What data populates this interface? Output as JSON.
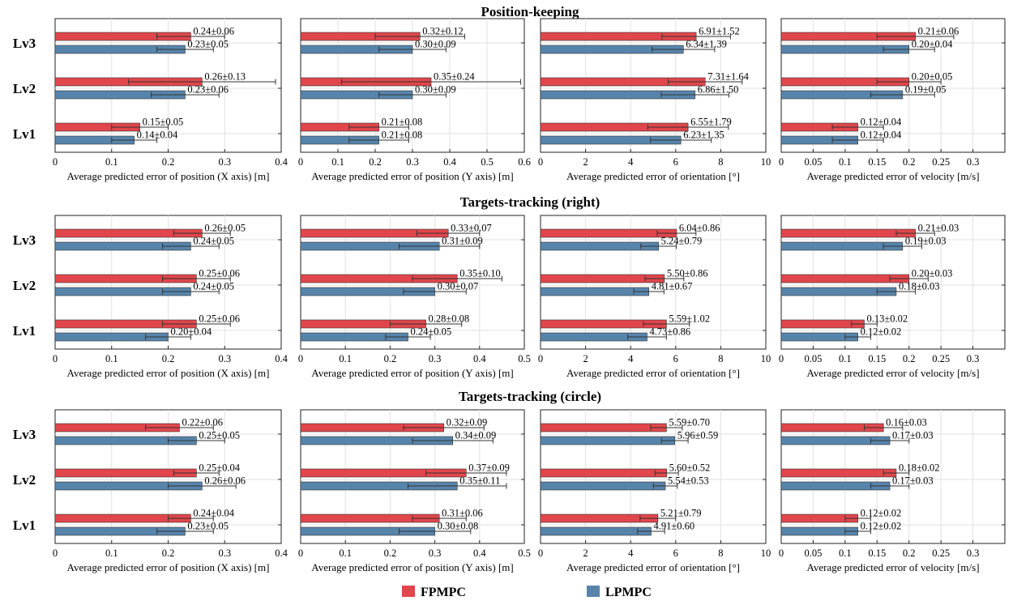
{
  "rows": [
    {
      "title": "Position-keeping"
    },
    {
      "title": "Targets-tracking (right)"
    },
    {
      "title": "Targets-tracking (circle)"
    }
  ],
  "levels": [
    "Lv3",
    "Lv2",
    "Lv1"
  ],
  "legend": {
    "placement": "bottom",
    "items": [
      {
        "name": "FPMPC",
        "color": "#e0464b"
      },
      {
        "name": "LPMPC",
        "color": "#5784ab"
      }
    ]
  },
  "colors": {
    "fpmpc": "#e0464b",
    "lpmpc": "#5784ab",
    "grid": "#e2e2e2",
    "errorbar": "#333333"
  },
  "chart_data": [
    {
      "type": "bar",
      "orientation": "horizontal",
      "row": 0,
      "col": 0,
      "xlabel": "Average predicted error of position (X axis) [m]",
      "xlim": [
        0,
        0.4
      ],
      "xticks": [
        "0",
        "0.1",
        "0.2",
        "0.3",
        "0.4"
      ],
      "grid": true,
      "categories": [
        "Lv3",
        "Lv2",
        "Lv1"
      ],
      "series": [
        {
          "name": "FPMPC",
          "values": [
            0.24,
            0.26,
            0.15
          ],
          "errors": [
            0.06,
            0.13,
            0.05
          ],
          "labels": [
            "0.24±0.06",
            "0.26±0.13",
            "0.15±0.05"
          ]
        },
        {
          "name": "LPMPC",
          "values": [
            0.23,
            0.23,
            0.14
          ],
          "errors": [
            0.05,
            0.06,
            0.04
          ],
          "labels": [
            "0.23±0.05",
            "0.23±0.06",
            "0.14±0.04"
          ]
        }
      ]
    },
    {
      "type": "bar",
      "orientation": "horizontal",
      "row": 0,
      "col": 1,
      "xlabel": "Average predicted error of position (Y axis) [m]",
      "xlim": [
        0,
        0.6
      ],
      "xticks": [
        "0",
        "0.1",
        "0.2",
        "0.3",
        "0.4",
        "0.5",
        "0.6"
      ],
      "grid": true,
      "categories": [
        "Lv3",
        "Lv2",
        "Lv1"
      ],
      "series": [
        {
          "name": "FPMPC",
          "values": [
            0.32,
            0.35,
            0.21
          ],
          "errors": [
            0.12,
            0.24,
            0.08
          ],
          "labels": [
            "0.32±0.12",
            "0.35±0.24",
            "0.21±0.08"
          ]
        },
        {
          "name": "LPMPC",
          "values": [
            0.3,
            0.3,
            0.21
          ],
          "errors": [
            0.09,
            0.09,
            0.08
          ],
          "labels": [
            "0.30±0.09",
            "0.30±0.09",
            "0.21±0.08"
          ]
        }
      ]
    },
    {
      "type": "bar",
      "orientation": "horizontal",
      "row": 0,
      "col": 2,
      "xlabel": "Average predicted error of orientation [°]",
      "xlim": [
        0,
        10
      ],
      "xticks": [
        "0",
        "2",
        "4",
        "6",
        "8",
        "10"
      ],
      "grid": true,
      "categories": [
        "Lv3",
        "Lv2",
        "Lv1"
      ],
      "series": [
        {
          "name": "FPMPC",
          "values": [
            6.91,
            7.31,
            6.55
          ],
          "errors": [
            1.52,
            1.64,
            1.79
          ],
          "labels": [
            "6.91±1.52",
            "7.31±1.64",
            "6.55±1.79"
          ]
        },
        {
          "name": "LPMPC",
          "values": [
            6.34,
            6.86,
            6.23
          ],
          "errors": [
            1.39,
            1.5,
            1.35
          ],
          "labels": [
            "6.34±1.39",
            "6.86±1.50",
            "6.23±1.35"
          ]
        }
      ]
    },
    {
      "type": "bar",
      "orientation": "horizontal",
      "row": 0,
      "col": 3,
      "xlabel": "Average predicted error of velocity [m/s]",
      "xlim": [
        0,
        0.35
      ],
      "xticks": [
        "0",
        "0.05",
        "0.1",
        "0.15",
        "0.2",
        "0.25",
        "0.3"
      ],
      "grid": true,
      "categories": [
        "Lv3",
        "Lv2",
        "Lv1"
      ],
      "series": [
        {
          "name": "FPMPC",
          "values": [
            0.21,
            0.2,
            0.12
          ],
          "errors": [
            0.06,
            0.05,
            0.04
          ],
          "labels": [
            "0.21±0.06",
            "0.20±0.05",
            "0.12±0.04"
          ]
        },
        {
          "name": "LPMPC",
          "values": [
            0.2,
            0.19,
            0.12
          ],
          "errors": [
            0.04,
            0.05,
            0.04
          ],
          "labels": [
            "0.20±0.04",
            "0.19±0.05",
            "0.12±0.04"
          ]
        }
      ]
    },
    {
      "type": "bar",
      "orientation": "horizontal",
      "row": 1,
      "col": 0,
      "xlabel": "Average predicted error of position (X axis) [m]",
      "xlim": [
        0,
        0.4
      ],
      "xticks": [
        "0",
        "0.1",
        "0.2",
        "0.3",
        "0.4"
      ],
      "grid": true,
      "categories": [
        "Lv3",
        "Lv2",
        "Lv1"
      ],
      "series": [
        {
          "name": "FPMPC",
          "values": [
            0.26,
            0.25,
            0.25
          ],
          "errors": [
            0.05,
            0.06,
            0.06
          ],
          "labels": [
            "0.26±0.05",
            "0.25±0.06",
            "0.25±0.06"
          ]
        },
        {
          "name": "LPMPC",
          "values": [
            0.24,
            0.24,
            0.2
          ],
          "errors": [
            0.05,
            0.05,
            0.04
          ],
          "labels": [
            "0.24±0.05",
            "0.24±0.05",
            "0.20±0.04"
          ]
        }
      ]
    },
    {
      "type": "bar",
      "orientation": "horizontal",
      "row": 1,
      "col": 1,
      "xlabel": "Average predicted error of position (Y axis) [m]",
      "xlim": [
        0,
        0.5
      ],
      "xticks": [
        "0",
        "0.1",
        "0.2",
        "0.3",
        "0.4",
        "0.5"
      ],
      "grid": true,
      "categories": [
        "Lv3",
        "Lv2",
        "Lv1"
      ],
      "series": [
        {
          "name": "FPMPC",
          "values": [
            0.33,
            0.35,
            0.28
          ],
          "errors": [
            0.07,
            0.1,
            0.08
          ],
          "labels": [
            "0.33±0.07",
            "0.35±0.10",
            "0.28±0.08"
          ]
        },
        {
          "name": "LPMPC",
          "values": [
            0.31,
            0.3,
            0.24
          ],
          "errors": [
            0.09,
            0.07,
            0.05
          ],
          "labels": [
            "0.31±0.09",
            "0.30±0.07",
            "0.24±0.05"
          ]
        }
      ]
    },
    {
      "type": "bar",
      "orientation": "horizontal",
      "row": 1,
      "col": 2,
      "xlabel": "Average predicted error of orientation [°]",
      "xlim": [
        0,
        10
      ],
      "xticks": [
        "0",
        "2",
        "4",
        "6",
        "8",
        "10"
      ],
      "grid": true,
      "categories": [
        "Lv3",
        "Lv2",
        "Lv1"
      ],
      "series": [
        {
          "name": "FPMPC",
          "values": [
            6.04,
            5.5,
            5.59
          ],
          "errors": [
            0.86,
            0.86,
            1.02
          ],
          "labels": [
            "6.04±0.86",
            "5.50±0.86",
            "5.59±1.02"
          ]
        },
        {
          "name": "LPMPC",
          "values": [
            5.24,
            4.81,
            4.73
          ],
          "errors": [
            0.79,
            0.67,
            0.86
          ],
          "labels": [
            "5.24±0.79",
            "4.81±0.67",
            "4.73±0.86"
          ]
        }
      ]
    },
    {
      "type": "bar",
      "orientation": "horizontal",
      "row": 1,
      "col": 3,
      "xlabel": "Average predicted error of velocity [m/s]",
      "xlim": [
        0,
        0.35
      ],
      "xticks": [
        "0",
        "0.05",
        "0.1",
        "0.15",
        "0.2",
        "0.25",
        "0.3"
      ],
      "grid": true,
      "categories": [
        "Lv3",
        "Lv2",
        "Lv1"
      ],
      "series": [
        {
          "name": "FPMPC",
          "values": [
            0.21,
            0.2,
            0.13
          ],
          "errors": [
            0.03,
            0.03,
            0.02
          ],
          "labels": [
            "0.21±0.03",
            "0.20±0.03",
            "0.13±0.02"
          ]
        },
        {
          "name": "LPMPC",
          "values": [
            0.19,
            0.18,
            0.12
          ],
          "errors": [
            0.03,
            0.03,
            0.02
          ],
          "labels": [
            "0.19±0.03",
            "0.18±0.03",
            "0.12±0.02"
          ]
        }
      ]
    },
    {
      "type": "bar",
      "orientation": "horizontal",
      "row": 2,
      "col": 0,
      "xlabel": "Average predicted error of position (X axis) [m]",
      "xlim": [
        0,
        0.4
      ],
      "xticks": [
        "0",
        "0.1",
        "0.2",
        "0.3",
        "0.4"
      ],
      "grid": true,
      "categories": [
        "Lv3",
        "Lv2",
        "Lv1"
      ],
      "series": [
        {
          "name": "FPMPC",
          "values": [
            0.22,
            0.25,
            0.24
          ],
          "errors": [
            0.06,
            0.04,
            0.04
          ],
          "labels": [
            "0.22±0.06",
            "0.25±0.04",
            "0.24±0.04"
          ]
        },
        {
          "name": "LPMPC",
          "values": [
            0.25,
            0.26,
            0.23
          ],
          "errors": [
            0.05,
            0.06,
            0.05
          ],
          "labels": [
            "0.25±0.05",
            "0.26±0.06",
            "0.23±0.05"
          ]
        }
      ]
    },
    {
      "type": "bar",
      "orientation": "horizontal",
      "row": 2,
      "col": 1,
      "xlabel": "Average predicted error of position (Y axis) [m]",
      "xlim": [
        0,
        0.5
      ],
      "xticks": [
        "0",
        "0.1",
        "0.2",
        "0.3",
        "0.4",
        "0.5"
      ],
      "grid": true,
      "categories": [
        "Lv3",
        "Lv2",
        "Lv1"
      ],
      "series": [
        {
          "name": "FPMPC",
          "values": [
            0.32,
            0.37,
            0.31
          ],
          "errors": [
            0.09,
            0.09,
            0.06
          ],
          "labels": [
            "0.32±0.09",
            "0.37±0.09",
            "0.31±0.06"
          ]
        },
        {
          "name": "LPMPC",
          "values": [
            0.34,
            0.35,
            0.3
          ],
          "errors": [
            0.09,
            0.11,
            0.08
          ],
          "labels": [
            "0.34±0.09",
            "0.35±0.11",
            "0.30±0.08"
          ]
        }
      ]
    },
    {
      "type": "bar",
      "orientation": "horizontal",
      "row": 2,
      "col": 2,
      "xlabel": "Average predicted error of orientation [°]",
      "xlim": [
        0,
        10
      ],
      "xticks": [
        "0",
        "2",
        "4",
        "6",
        "8",
        "10"
      ],
      "grid": true,
      "categories": [
        "Lv3",
        "Lv2",
        "Lv1"
      ],
      "series": [
        {
          "name": "FPMPC",
          "values": [
            5.59,
            5.6,
            5.21
          ],
          "errors": [
            0.7,
            0.52,
            0.79
          ],
          "labels": [
            "5.59±0.70",
            "5.60±0.52",
            "5.21±0.79"
          ]
        },
        {
          "name": "LPMPC",
          "values": [
            5.96,
            5.54,
            4.91
          ],
          "errors": [
            0.59,
            0.53,
            0.6
          ],
          "labels": [
            "5.96±0.59",
            "5.54±0.53",
            "4.91±0.60"
          ]
        }
      ]
    },
    {
      "type": "bar",
      "orientation": "horizontal",
      "row": 2,
      "col": 3,
      "xlabel": "Average predicted error of velocity [m/s]",
      "xlim": [
        0,
        0.35
      ],
      "xticks": [
        "0",
        "0.05",
        "0.1",
        "0.15",
        "0.2",
        "0.25",
        "0.3"
      ],
      "grid": true,
      "categories": [
        "Lv3",
        "Lv2",
        "Lv1"
      ],
      "series": [
        {
          "name": "FPMPC",
          "values": [
            0.16,
            0.18,
            0.12
          ],
          "errors": [
            0.03,
            0.02,
            0.02
          ],
          "labels": [
            "0.16±0.03",
            "0.18±0.02",
            "0.12±0.02"
          ]
        },
        {
          "name": "LPMPC",
          "values": [
            0.17,
            0.17,
            0.12
          ],
          "errors": [
            0.03,
            0.03,
            0.02
          ],
          "labels": [
            "0.17±0.03",
            "0.17±0.03",
            "0.12±0.02"
          ]
        }
      ]
    }
  ]
}
